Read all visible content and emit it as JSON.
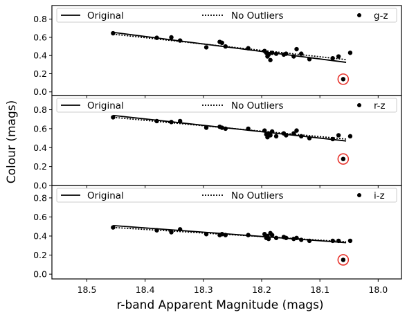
{
  "figure": {
    "xlabel": "r-band Apparent Magnitude (mags)",
    "ylabel": "Colour (mags)"
  },
  "colors": {
    "points": "#000000",
    "fit_lines": "#000000",
    "outlier_ring": "#e8332c",
    "frame": "#000000",
    "legend_border": "#cccccc"
  },
  "chart_data": [
    {
      "type": "scatter",
      "panel": "g-z",
      "x_reversed": true,
      "xlim": [
        18.56,
        17.96
      ],
      "ylim": [
        -0.04,
        0.95
      ],
      "xticks": [
        "18.5",
        "18.4",
        "18.3",
        "18.2",
        "18.1",
        "18.0"
      ],
      "yticks": [
        "0.0",
        "0.2",
        "0.4",
        "0.6",
        "0.8"
      ],
      "grid": false,
      "legend": {
        "placement": "top",
        "entries": [
          "Original",
          "No Outliers",
          "g-z"
        ]
      },
      "series": [
        {
          "name": "g-z",
          "style": "points",
          "x": [
            18.455,
            18.38,
            18.355,
            18.34,
            18.295,
            18.272,
            18.268,
            18.262,
            18.223,
            18.195,
            18.192,
            18.19,
            18.188,
            18.185,
            18.182,
            18.175,
            18.162,
            18.158,
            18.145,
            18.14,
            18.132,
            18.118,
            18.078,
            18.068,
            18.048,
            18.06
          ],
          "y": [
            0.645,
            0.595,
            0.6,
            0.565,
            0.49,
            0.55,
            0.54,
            0.5,
            0.48,
            0.45,
            0.43,
            0.39,
            0.41,
            0.35,
            0.43,
            0.42,
            0.41,
            0.42,
            0.39,
            0.47,
            0.42,
            0.36,
            0.37,
            0.39,
            0.43,
            0.14
          ]
        },
        {
          "name": "Original",
          "style": "solid-line",
          "x": [
            18.455,
            18.055
          ],
          "y": [
            0.655,
            0.325
          ]
        },
        {
          "name": "No Outliers",
          "style": "dotted-line",
          "x": [
            18.455,
            18.055
          ],
          "y": [
            0.635,
            0.355
          ]
        }
      ],
      "highlighted_outlier": {
        "x": 18.06,
        "y": 0.14
      }
    },
    {
      "type": "scatter",
      "panel": "r-z",
      "x_reversed": true,
      "xlim": [
        18.56,
        17.96
      ],
      "ylim": [
        0.0,
        0.95
      ],
      "xticks": [
        "18.5",
        "18.4",
        "18.3",
        "18.2",
        "18.1",
        "18.0"
      ],
      "yticks": [
        "0.0",
        "0.2",
        "0.4",
        "0.6",
        "0.8"
      ],
      "grid": false,
      "legend": {
        "placement": "top",
        "entries": [
          "Original",
          "No Outliers",
          "r-z"
        ]
      },
      "series": [
        {
          "name": "r-z",
          "style": "points",
          "x": [
            18.455,
            18.38,
            18.355,
            18.34,
            18.295,
            18.272,
            18.268,
            18.262,
            18.223,
            18.195,
            18.192,
            18.19,
            18.188,
            18.185,
            18.182,
            18.175,
            18.162,
            18.158,
            18.145,
            18.14,
            18.132,
            18.118,
            18.078,
            18.068,
            18.048,
            18.06
          ],
          "y": [
            0.72,
            0.68,
            0.67,
            0.68,
            0.61,
            0.62,
            0.61,
            0.6,
            0.6,
            0.58,
            0.54,
            0.51,
            0.55,
            0.53,
            0.57,
            0.52,
            0.55,
            0.53,
            0.55,
            0.58,
            0.52,
            0.5,
            0.49,
            0.53,
            0.52,
            0.28
          ]
        },
        {
          "name": "Original",
          "style": "solid-line",
          "x": [
            18.455,
            18.055
          ],
          "y": [
            0.74,
            0.47
          ]
        },
        {
          "name": "No Outliers",
          "style": "dotted-line",
          "x": [
            18.455,
            18.055
          ],
          "y": [
            0.72,
            0.49
          ]
        }
      ],
      "highlighted_outlier": {
        "x": 18.06,
        "y": 0.28
      }
    },
    {
      "type": "scatter",
      "panel": "i-z",
      "x_reversed": true,
      "xlim": [
        18.56,
        17.96
      ],
      "ylim": [
        -0.05,
        0.93
      ],
      "xticks": [
        "18.5",
        "18.4",
        "18.3",
        "18.2",
        "18.1",
        "18.0"
      ],
      "yticks": [
        "0.0",
        "0.2",
        "0.4",
        "0.6",
        "0.8"
      ],
      "grid": false,
      "legend": {
        "placement": "top",
        "entries": [
          "Original",
          "No Outliers",
          "i-z"
        ]
      },
      "series": [
        {
          "name": "i-z",
          "style": "points",
          "x": [
            18.455,
            18.38,
            18.355,
            18.34,
            18.295,
            18.272,
            18.268,
            18.262,
            18.223,
            18.195,
            18.192,
            18.19,
            18.188,
            18.185,
            18.182,
            18.175,
            18.162,
            18.158,
            18.145,
            18.14,
            18.132,
            18.118,
            18.078,
            18.068,
            18.048,
            18.06
          ],
          "y": [
            0.49,
            0.46,
            0.44,
            0.47,
            0.42,
            0.41,
            0.42,
            0.41,
            0.41,
            0.42,
            0.38,
            0.4,
            0.37,
            0.43,
            0.41,
            0.38,
            0.39,
            0.38,
            0.37,
            0.38,
            0.36,
            0.35,
            0.35,
            0.35,
            0.35,
            0.15
          ]
        },
        {
          "name": "Original",
          "style": "solid-line",
          "x": [
            18.455,
            18.055
          ],
          "y": [
            0.51,
            0.33
          ]
        },
        {
          "name": "No Outliers",
          "style": "dotted-line",
          "x": [
            18.455,
            18.055
          ],
          "y": [
            0.49,
            0.34
          ]
        }
      ],
      "highlighted_outlier": {
        "x": 18.06,
        "y": 0.15
      }
    }
  ]
}
